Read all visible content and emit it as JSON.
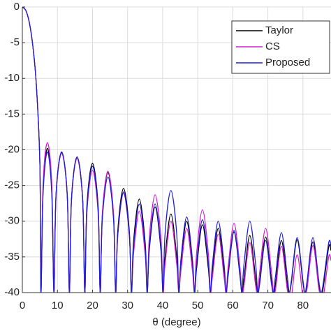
{
  "chart_data": {
    "type": "line",
    "xlabel": "θ (degree)",
    "x": [
      0,
      1,
      2,
      3,
      4,
      5,
      5.3,
      5.9,
      7.15,
      8.4,
      9.0,
      9.6,
      11.2,
      12.8,
      13.4,
      14.0,
      15.6,
      17.2,
      17.8,
      18.4,
      20.0,
      21.6,
      22.2,
      22.8,
      24.4,
      26.0,
      26.6,
      27.2,
      28.85,
      30.5,
      31.1,
      31.7,
      33.35,
      35.0,
      35.6,
      36.2,
      37.85,
      39.5,
      40.1,
      40.7,
      42.35,
      44.0,
      44.6,
      45.2,
      46.85,
      48.5,
      49.1,
      49.7,
      51.35,
      53.0,
      53.6,
      54.2,
      55.85,
      57.5,
      58.1,
      58.7,
      60.35,
      62.0,
      62.6,
      63.2,
      64.85,
      66.5,
      67.1,
      67.7,
      69.35,
      71.0,
      71.6,
      72.2,
      73.85,
      75.5,
      76.1,
      76.7,
      78.35,
      80.0,
      80.6,
      81.2,
      82.85,
      84.5,
      85.1,
      85.7,
      87.35,
      88
    ],
    "series": [
      {
        "name": "Taylor",
        "color": "#000000",
        "values": [
          0,
          -0.5,
          -2.2,
          -5.5,
          -11,
          -22,
          -40,
          -25.8,
          -19.8,
          -25.8,
          -40,
          -26.4,
          -20.4,
          -26.4,
          -40,
          -27,
          -21,
          -27,
          -40,
          -27.9,
          -21.9,
          -27.9,
          -40,
          -29.2,
          -23.2,
          -29.2,
          -40,
          -31.4,
          -25.4,
          -31.4,
          -40,
          -32.9,
          -26.9,
          -32.9,
          -40,
          -34,
          -28,
          -34,
          -40,
          -35,
          -29,
          -35,
          -40,
          -36,
          -30,
          -36,
          -40,
          -36.5,
          -30.5,
          -36.5,
          -40,
          -37,
          -31,
          -37,
          -40,
          -37.5,
          -31.5,
          -37.5,
          -40,
          -38,
          -32,
          -38,
          -40,
          -38.2,
          -32.2,
          -38.2,
          -40,
          -38.7,
          -32.7,
          -38.7,
          -40,
          -38.6,
          -32.6,
          -38.6,
          -40,
          -38.9,
          -32.9,
          -38.9,
          -40,
          -39.6,
          -33.6,
          -34.1
        ]
      },
      {
        "name": "CS",
        "color": "#d21fd2",
        "values": [
          0,
          -0.5,
          -2.2,
          -5.5,
          -11,
          -22,
          -40,
          -25,
          -19,
          -25,
          -40,
          -26.5,
          -20.5,
          -26.5,
          -40,
          -27.2,
          -21.2,
          -27.2,
          -40,
          -28.9,
          -22.9,
          -28.9,
          -40,
          -29,
          -23,
          -29,
          -40,
          -32.1,
          -26.1,
          -32.1,
          -40,
          -34.6,
          -28.6,
          -34.6,
          -40,
          -32.3,
          -26.3,
          -32.3,
          -40,
          -36,
          -30,
          -36,
          -40,
          -37,
          -31,
          -37,
          -40,
          -34.4,
          -28.4,
          -34.4,
          -40,
          -37.8,
          -31.8,
          -37.8,
          -40,
          -36.3,
          -30.3,
          -36.3,
          -40,
          -39,
          -33,
          -39,
          -40,
          -37,
          -31,
          -37,
          -40,
          -39.5,
          -33.5,
          -39.5,
          -40,
          -40.7,
          -34.7,
          -40.7,
          -40,
          -39.4,
          -33.4,
          -39.4,
          -40,
          -41,
          -35,
          -35.5
        ]
      },
      {
        "name": "Proposed",
        "color": "#1f1fd2",
        "values": [
          0,
          -0.5,
          -2.2,
          -5.5,
          -11,
          -22,
          -40,
          -26.3,
          -20.3,
          -26.3,
          -40,
          -26.3,
          -20.3,
          -26.3,
          -40,
          -27,
          -21,
          -27,
          -40,
          -28.3,
          -22.3,
          -28.3,
          -40,
          -29.8,
          -23.8,
          -29.8,
          -40,
          -31.9,
          -25.9,
          -31.9,
          -40,
          -33.6,
          -27.6,
          -33.6,
          -40,
          -33.6,
          -27.6,
          -33.6,
          -40,
          -31.7,
          -25.7,
          -31.7,
          -40,
          -35.4,
          -29.4,
          -35.4,
          -40,
          -35.8,
          -29.8,
          -35.8,
          -40,
          -36,
          -30,
          -36,
          -40,
          -37.3,
          -31.3,
          -37.3,
          -40,
          -36,
          -30,
          -36,
          -40,
          -38.7,
          -32.7,
          -38.7,
          -40,
          -37.6,
          -31.6,
          -37.6,
          -40,
          -38.3,
          -32.3,
          -38.3,
          -40,
          -38.3,
          -32.3,
          -38.3,
          -40,
          -39,
          -33,
          -33.5
        ]
      }
    ],
    "xlim": [
      0,
      88
    ],
    "xticks": [
      0,
      10,
      20,
      30,
      40,
      50,
      60,
      70,
      80
    ],
    "ylim": [
      -40,
      0
    ],
    "yticks": [
      0,
      -5,
      -10,
      -15,
      -20,
      -25,
      -30,
      -35,
      -40
    ],
    "grid": true,
    "legend": "top-right"
  }
}
